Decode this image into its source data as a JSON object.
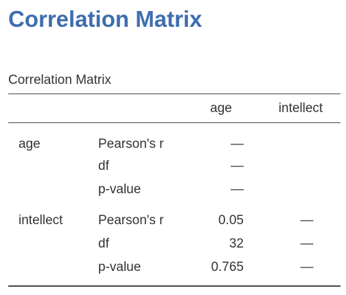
{
  "header": {
    "title": "Correlation Matrix"
  },
  "table": {
    "caption": "Correlation Matrix",
    "columns": [
      "age",
      "intellect"
    ],
    "groups": [
      {
        "variable": "age",
        "rows": [
          {
            "stat": "Pearson's r",
            "values": [
              "—"
            ]
          },
          {
            "stat": "df",
            "values": [
              "—"
            ]
          },
          {
            "stat": "p-value",
            "values": [
              "—"
            ]
          }
        ]
      },
      {
        "variable": "intellect",
        "rows": [
          {
            "stat": "Pearson's r",
            "values": [
              0.05,
              "—"
            ]
          },
          {
            "stat": "df",
            "values": [
              32,
              "—"
            ]
          },
          {
            "stat": "p-value",
            "values": [
              0.765,
              "—"
            ]
          }
        ]
      }
    ]
  }
}
